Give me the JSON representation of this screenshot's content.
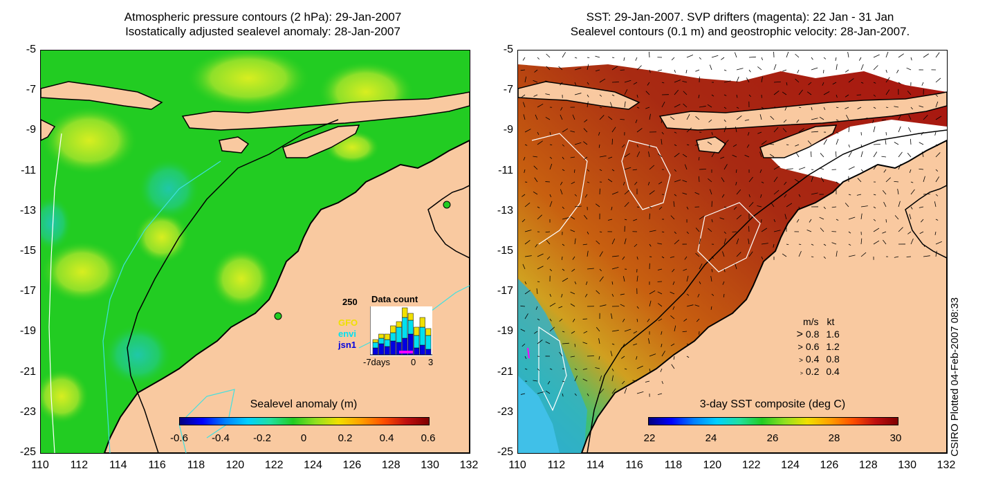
{
  "left_panel": {
    "title_line1": "Atmospheric pressure contours (2 hPa): 29-Jan-2007",
    "title_line2": "Isostatically adjusted sealevel anomaly: 28-Jan-2007",
    "colorbar_label": "Sealevel anomaly (m)",
    "colorbar_ticks": [
      "-0.6",
      "-0.4",
      "-0.2",
      "0",
      "0.2",
      "0.4",
      "0.6"
    ],
    "inset": {
      "title": "Data count",
      "y_max_label": "250",
      "x_labels": [
        "-7days",
        "0",
        "3"
      ],
      "satellites": [
        {
          "name": "GFO",
          "color": "#f0e000"
        },
        {
          "name": "envi",
          "color": "#00e0f0"
        },
        {
          "name": "jsn1",
          "color": "#0000e0"
        }
      ]
    }
  },
  "right_panel": {
    "title_line1": "SST: 29-Jan-2007. SVP drifters (magenta): 22 Jan - 31 Jan",
    "title_line2": "Sealevel contours (0.1 m) and geostrophic velocity: 28-Jan-2007.",
    "colorbar_label": "3-day SST composite (deg C)",
    "colorbar_ticks": [
      "22",
      "24",
      "26",
      "28",
      "30"
    ],
    "velocity_legend": {
      "header_ms": "m/s",
      "header_kt": "kt",
      "rows": [
        {
          "ms": "0.8",
          "kt": "1.6"
        },
        {
          "ms": "0.6",
          "kt": "1.2"
        },
        {
          "ms": "0.4",
          "kt": "0.8"
        },
        {
          "ms": "0.2",
          "kt": "0.4"
        }
      ]
    }
  },
  "axes": {
    "y_ticks": [
      "-5",
      "-7",
      "-9",
      "-11",
      "-13",
      "-15",
      "-17",
      "-19",
      "-21",
      "-23",
      "-25"
    ],
    "x_ticks": [
      "110",
      "112",
      "114",
      "116",
      "118",
      "120",
      "122",
      "124",
      "126",
      "128",
      "130",
      "132"
    ]
  },
  "credit": "CSIRO Plotted 04-Feb-2007 08:33",
  "colors": {
    "land": "#f9c9a0",
    "ocean_green": "#22cc22",
    "sst_red": "#a81410"
  }
}
